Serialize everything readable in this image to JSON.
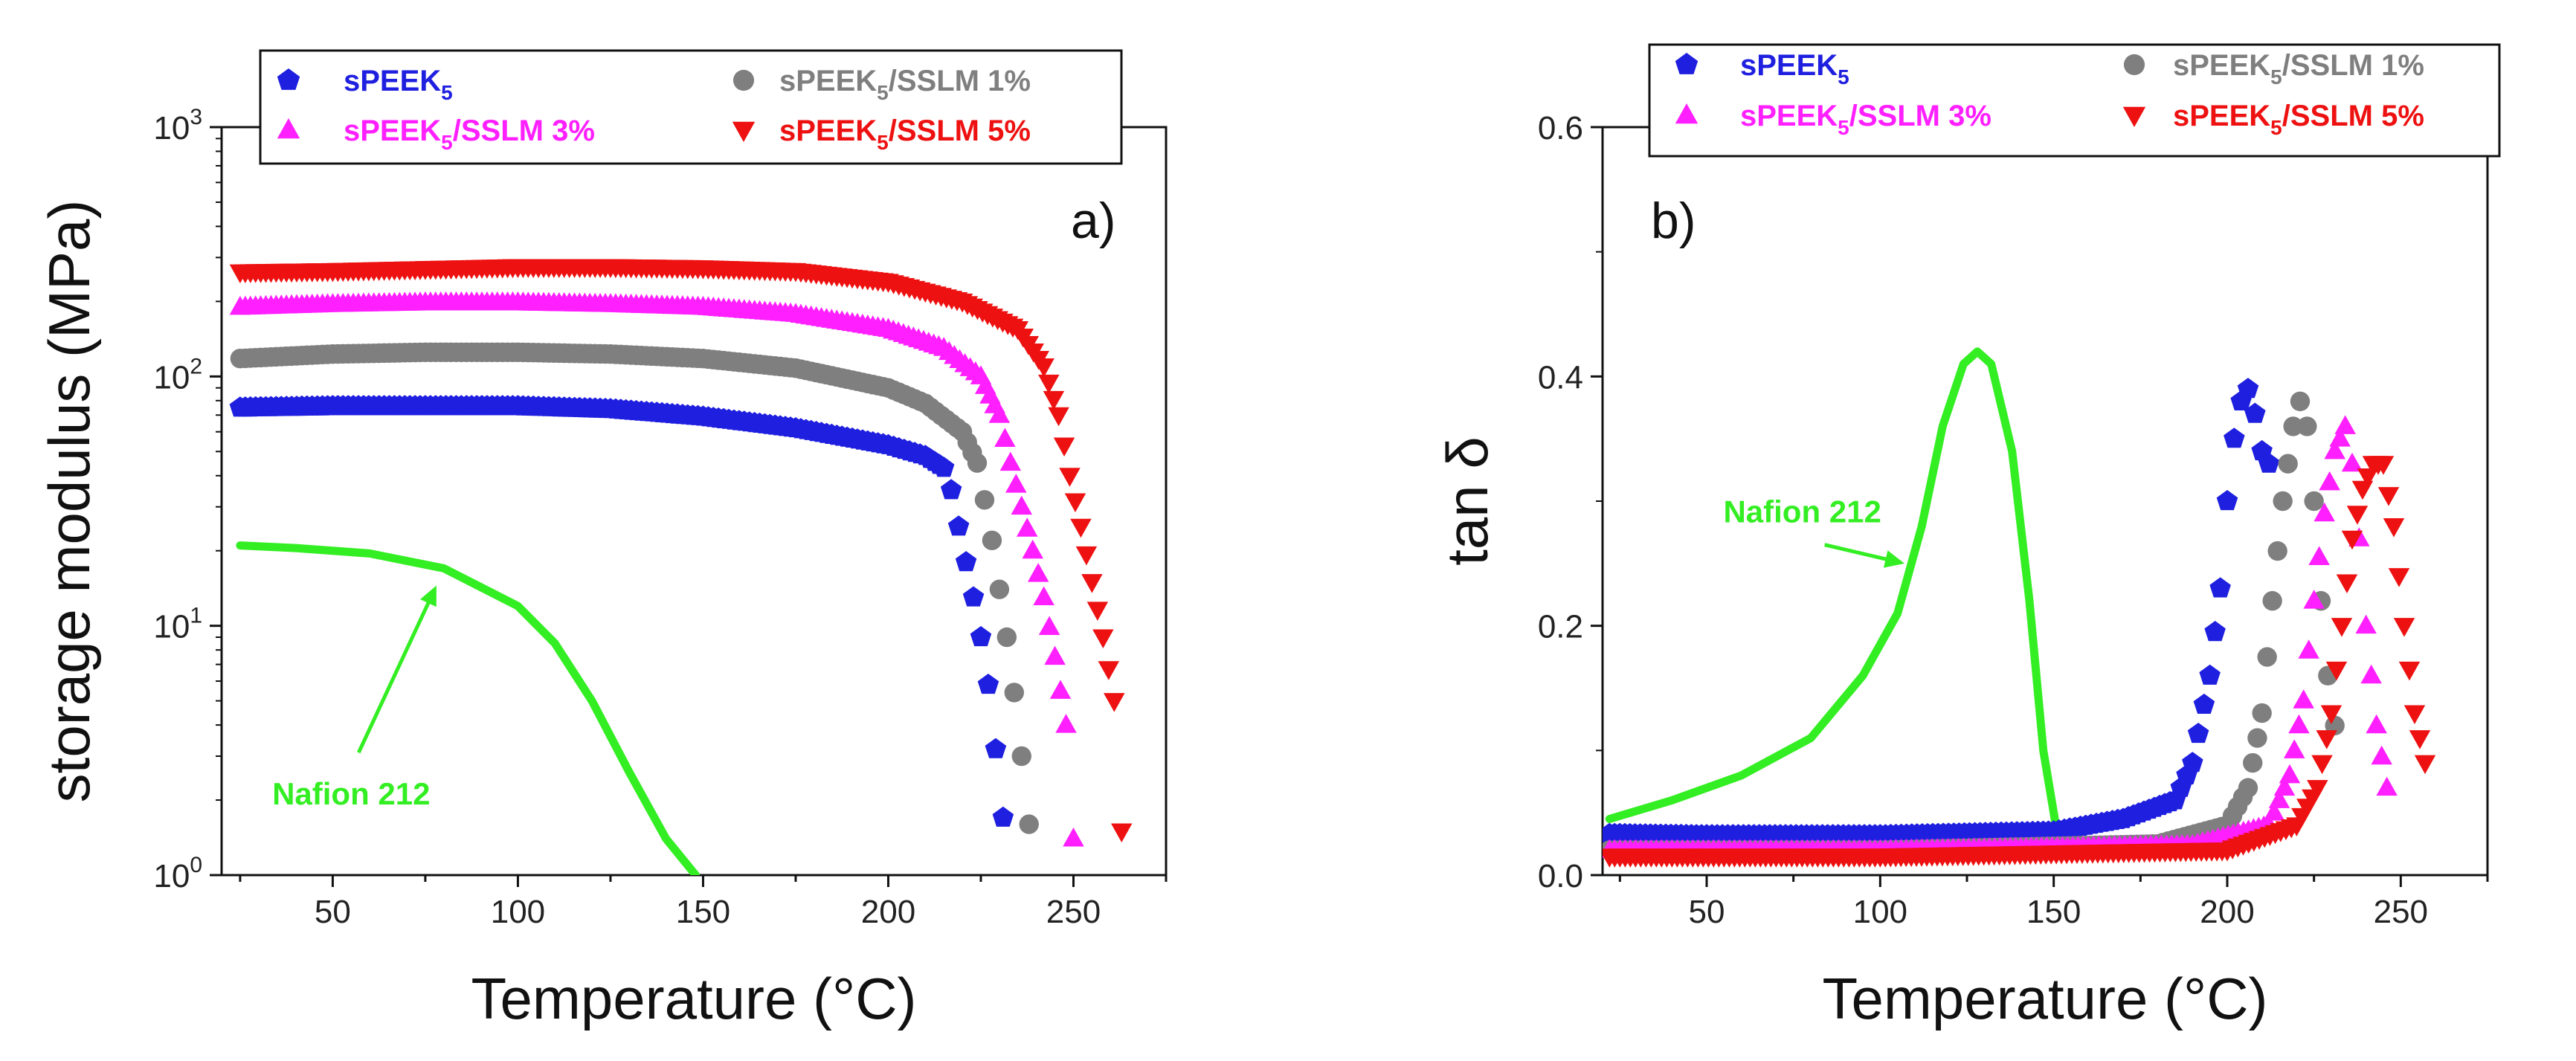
{
  "colors": {
    "speek": "#1f1fe0",
    "ssl1": "#7f7f7f",
    "ssl3": "#ff1fff",
    "ssl5": "#ee1111",
    "nafion": "#33ee22"
  },
  "chart_data": [
    {
      "id": "a",
      "type": "scatter",
      "panel_label": "a)",
      "xlabel": "Temperature (°C)",
      "ylabel": "storage modulus (MPa)",
      "yscale": "log",
      "xlim": [
        20,
        275
      ],
      "ylim": [
        1,
        1000
      ],
      "xticks": [
        50,
        100,
        150,
        200,
        250
      ],
      "yticks": [
        {
          "base": "10",
          "exp": "0",
          "value": 1
        },
        {
          "base": "10",
          "exp": "1",
          "value": 10
        },
        {
          "base": "10",
          "exp": "2",
          "value": 100
        },
        {
          "base": "10",
          "exp": "3",
          "value": 1000
        }
      ],
      "legend": [
        {
          "series": "speek",
          "label": "sPEEK",
          "sub": "5",
          "suffix": ""
        },
        {
          "series": "ssl1",
          "label": "sPEEK",
          "sub": "5",
          "suffix": "/SSLM 1%"
        },
        {
          "series": "ssl3",
          "label": "sPEEK",
          "sub": "5",
          "suffix": "/SSLM 3%"
        },
        {
          "series": "ssl5",
          "label": "sPEEK",
          "sub": "5",
          "suffix": "/SSLM 5%"
        }
      ],
      "annotation": {
        "text": "Nafion 212",
        "from": [
          57,
          3.1
        ],
        "to": [
          78,
          14.5
        ]
      },
      "series": [
        {
          "name": "sPEEK5",
          "key": "speek",
          "marker": "pentagon",
          "x": [
            25,
            50,
            75,
            100,
            125,
            150,
            175,
            200,
            210,
            215,
            217,
            219,
            221,
            223,
            225,
            227,
            229,
            231
          ],
          "y": [
            75,
            76,
            76,
            76,
            74,
            69,
            62,
            53,
            48,
            43,
            35,
            25,
            18,
            13,
            9,
            5.8,
            3.2,
            1.7
          ]
        },
        {
          "name": "sPEEK5/SSLM 1%",
          "key": "ssl1",
          "marker": "circle",
          "x": [
            25,
            50,
            75,
            100,
            125,
            150,
            175,
            200,
            210,
            220,
            224,
            226,
            228,
            230,
            232,
            234,
            236,
            238
          ],
          "y": [
            118,
            123,
            125,
            125,
            123,
            118,
            108,
            90,
            78,
            60,
            45,
            32,
            22,
            14,
            9,
            5.4,
            3,
            1.6
          ]
        },
        {
          "name": "sPEEK5/SSLM 3%",
          "key": "ssl3",
          "marker": "triangle",
          "x": [
            25,
            50,
            75,
            100,
            125,
            150,
            175,
            200,
            215,
            225,
            230,
            233,
            236,
            239,
            242,
            245,
            248,
            250
          ],
          "y": [
            190,
            195,
            198,
            198,
            195,
            190,
            178,
            155,
            130,
            100,
            70,
            45,
            30,
            20,
            13,
            7.5,
            4,
            1.4
          ]
        },
        {
          "name": "sPEEK5/SSLM 5%",
          "key": "ssl5",
          "marker": "triangle-down",
          "x": [
            25,
            50,
            75,
            100,
            125,
            150,
            175,
            200,
            220,
            235,
            242,
            246,
            249,
            252,
            255,
            258,
            261,
            263
          ],
          "y": [
            262,
            265,
            270,
            275,
            275,
            272,
            265,
            240,
            200,
            155,
            110,
            70,
            40,
            25,
            15,
            9,
            5,
            1.5
          ]
        },
        {
          "name": "Nafion 212",
          "key": "nafion",
          "marker": "line",
          "x": [
            25,
            40,
            60,
            80,
            100,
            110,
            120,
            130,
            140,
            148
          ],
          "y": [
            21,
            20.5,
            19.5,
            17,
            12,
            8.5,
            5,
            2.6,
            1.4,
            1
          ]
        }
      ]
    },
    {
      "id": "b",
      "type": "scatter",
      "panel_label": "b)",
      "xlabel": "Temperature (°C)",
      "ylabel": "tan δ",
      "yscale": "linear",
      "xlim": [
        20,
        275
      ],
      "ylim": [
        0,
        0.6
      ],
      "xticks": [
        50,
        100,
        150,
        200,
        250
      ],
      "yticks": [
        {
          "label": "0.0",
          "value": 0
        },
        {
          "label": "0.2",
          "value": 0.2
        },
        {
          "label": "0.4",
          "value": 0.4
        },
        {
          "label": "0.6",
          "value": 0.6
        }
      ],
      "legend": [
        {
          "series": "speek",
          "label": "sPEEK",
          "sub": "5",
          "suffix": ""
        },
        {
          "series": "ssl1",
          "label": "sPEEK",
          "sub": "5",
          "suffix": "/SSLM 1%"
        },
        {
          "series": "ssl3",
          "label": "sPEEK",
          "sub": "5",
          "suffix": "/SSLM 3%"
        },
        {
          "series": "ssl5",
          "label": "sPEEK",
          "sub": "5",
          "suffix": "/SSLM 5%"
        }
      ],
      "annotation": {
        "text": "Nafion 212",
        "from": [
          84,
          0.265
        ],
        "to": [
          107,
          0.25
        ]
      },
      "series": [
        {
          "name": "Nafion 212",
          "key": "nafion",
          "marker": "line",
          "x": [
            22,
            40,
            60,
            80,
            95,
            105,
            112,
            118,
            124,
            128,
            132,
            138,
            143,
            147,
            150,
            151
          ],
          "y": [
            0.045,
            0.06,
            0.08,
            0.11,
            0.16,
            0.21,
            0.28,
            0.36,
            0.41,
            0.42,
            0.41,
            0.34,
            0.22,
            0.1,
            0.05,
            0.033
          ]
        },
        {
          "name": "sPEEK5",
          "key": "speek",
          "marker": "pentagon",
          "x": [
            22,
            50,
            100,
            150,
            170,
            185,
            190,
            195,
            198,
            200,
            202,
            204,
            206,
            208,
            210,
            212
          ],
          "y": [
            0.033,
            0.032,
            0.032,
            0.035,
            0.045,
            0.06,
            0.09,
            0.16,
            0.23,
            0.3,
            0.35,
            0.38,
            0.39,
            0.37,
            0.34,
            0.33
          ]
        },
        {
          "name": "sPEEK5/SSLM 1%",
          "key": "ssl1",
          "marker": "circle",
          "x": [
            22,
            100,
            180,
            200,
            206,
            210,
            213,
            216,
            219,
            221,
            223,
            225,
            227,
            229,
            231
          ],
          "y": [
            0.02,
            0.02,
            0.025,
            0.04,
            0.07,
            0.13,
            0.22,
            0.3,
            0.36,
            0.38,
            0.36,
            0.3,
            0.22,
            0.16,
            0.12
          ]
        },
        {
          "name": "sPEEK5/SSLM 3%",
          "key": "ssl3",
          "marker": "triangle",
          "x": [
            22,
            100,
            190,
            212,
            218,
            222,
            225,
            228,
            231,
            234,
            236,
            238,
            240,
            243,
            246
          ],
          "y": [
            0.02,
            0.02,
            0.024,
            0.04,
            0.08,
            0.14,
            0.22,
            0.29,
            0.34,
            0.36,
            0.33,
            0.27,
            0.2,
            0.12,
            0.07
          ]
        },
        {
          "name": "sPEEK5/SSLM 5%",
          "key": "ssl5",
          "marker": "triangle-down",
          "x": [
            22,
            100,
            200,
            220,
            226,
            230,
            233,
            236,
            239,
            242,
            245,
            248,
            251,
            254,
            257
          ],
          "y": [
            0.015,
            0.015,
            0.02,
            0.04,
            0.07,
            0.13,
            0.2,
            0.27,
            0.31,
            0.33,
            0.33,
            0.28,
            0.2,
            0.13,
            0.09
          ]
        }
      ]
    }
  ]
}
